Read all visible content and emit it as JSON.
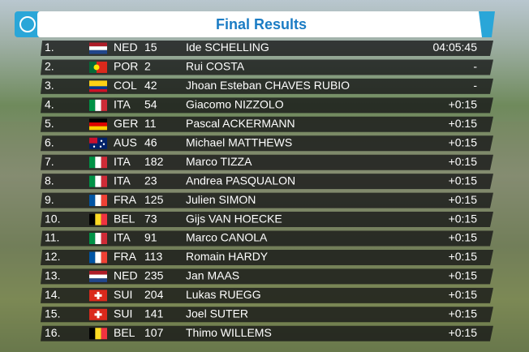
{
  "header": {
    "title": "Final Results"
  },
  "table": {
    "rows": [
      [
        "1.",
        "NED",
        "15",
        "Ide SCHELLING",
        "04:05:45"
      ],
      [
        "2.",
        "POR",
        "2",
        "Rui COSTA",
        "-"
      ],
      [
        "3.",
        "COL",
        "42",
        "Jhoan Esteban CHAVES RUBIO",
        "-"
      ],
      [
        "4.",
        "ITA",
        "54",
        "Giacomo NIZZOLO",
        "+0:15"
      ],
      [
        "5.",
        "GER",
        "11",
        "Pascal ACKERMANN",
        "+0:15"
      ],
      [
        "6.",
        "AUS",
        "46",
        "Michael MATTHEWS",
        "+0:15"
      ],
      [
        "7.",
        "ITA",
        "182",
        "Marco TIZZA",
        "+0:15"
      ],
      [
        "8.",
        "ITA",
        "23",
        "Andrea PASQUALON",
        "+0:15"
      ],
      [
        "9.",
        "FRA",
        "125",
        "Julien SIMON",
        "+0:15"
      ],
      [
        "10.",
        "BEL",
        "73",
        "Gijs VAN HOECKE",
        "+0:15"
      ],
      [
        "11.",
        "ITA",
        "91",
        "Marco CANOLA",
        "+0:15"
      ],
      [
        "12.",
        "FRA",
        "113",
        "Romain HARDY",
        "+0:15"
      ],
      [
        "13.",
        "NED",
        "235",
        "Jan MAAS",
        "+0:15"
      ],
      [
        "14.",
        "SUI",
        "204",
        "Lukas RUEGG",
        "+0:15"
      ],
      [
        "15.",
        "SUI",
        "141",
        "Joel SUTER",
        "+0:15"
      ],
      [
        "16.",
        "BEL",
        "107",
        "Thimo WILLEMS",
        "+0:15"
      ]
    ]
  }
}
